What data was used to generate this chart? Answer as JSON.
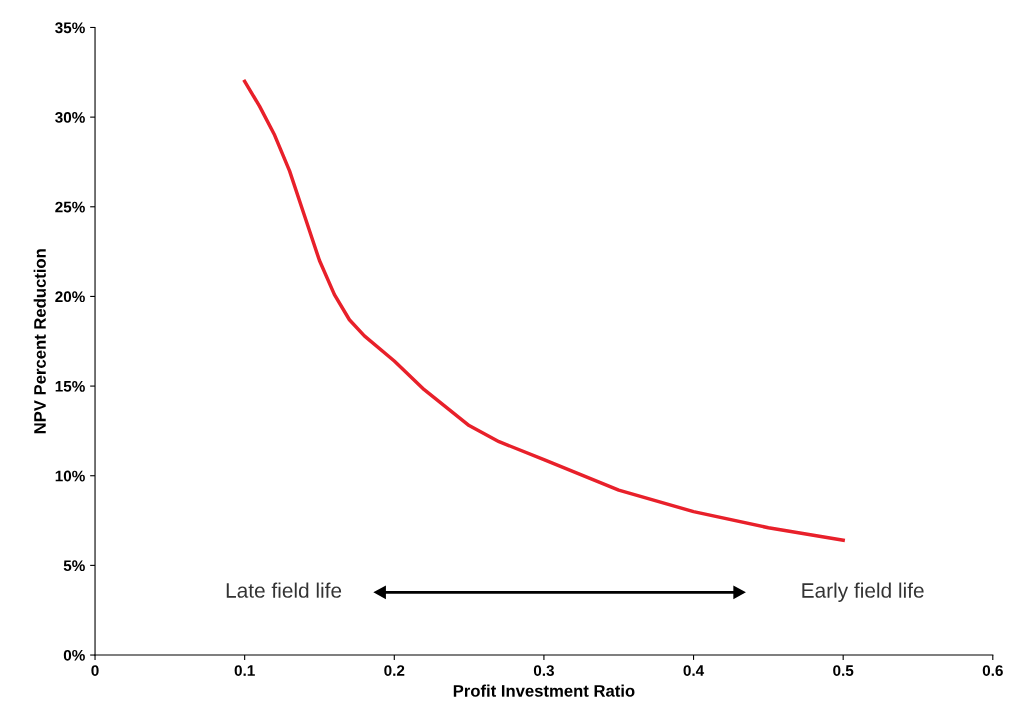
{
  "chart_data": {
    "type": "line",
    "xlabel": "Profit Investment Ratio",
    "ylabel": "NPV Percent Reduction",
    "x": [
      0.1,
      0.11,
      0.12,
      0.13,
      0.14,
      0.15,
      0.16,
      0.17,
      0.18,
      0.2,
      0.22,
      0.25,
      0.27,
      0.3,
      0.35,
      0.4,
      0.45,
      0.5
    ],
    "series": [
      {
        "color": "#e8202a",
        "values": [
          32.0,
          30.6,
          29.0,
          27.0,
          24.5,
          22.0,
          20.1,
          18.7,
          17.8,
          16.4,
          14.8,
          12.8,
          11.9,
          10.9,
          9.2,
          8.0,
          7.1,
          6.4
        ]
      }
    ],
    "xlim": [
      0,
      0.6
    ],
    "xticks": [
      0,
      0.1,
      0.2,
      0.3,
      0.4,
      0.5,
      0.6
    ],
    "ylim": [
      0,
      35
    ],
    "yticks": [
      {
        "value": 0,
        "label": "0%"
      },
      {
        "value": 5,
        "label": "5%"
      },
      {
        "value": 10,
        "label": "10%"
      },
      {
        "value": 15,
        "label": "15%"
      },
      {
        "value": 20,
        "label": "20%"
      },
      {
        "value": 25,
        "label": "25%"
      },
      {
        "value": 30,
        "label": "30%"
      },
      {
        "value": 35,
        "label": "35%"
      }
    ],
    "annotations": [
      "Late field life",
      "Early field life"
    ],
    "grid": false,
    "legend": false,
    "marker": "none",
    "line_style": "solid"
  }
}
